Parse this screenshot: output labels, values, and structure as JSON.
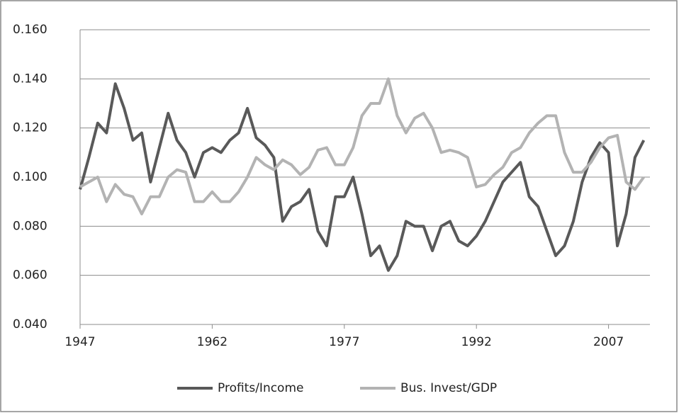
{
  "chart_data": {
    "type": "line",
    "x": [
      1947,
      1948,
      1949,
      1950,
      1951,
      1952,
      1953,
      1954,
      1955,
      1956,
      1957,
      1958,
      1959,
      1960,
      1961,
      1962,
      1963,
      1964,
      1965,
      1966,
      1967,
      1968,
      1969,
      1970,
      1971,
      1972,
      1973,
      1974,
      1975,
      1976,
      1977,
      1978,
      1979,
      1980,
      1981,
      1982,
      1983,
      1984,
      1985,
      1986,
      1987,
      1988,
      1989,
      1990,
      1991,
      1992,
      1993,
      1994,
      1995,
      1996,
      1997,
      1998,
      1999,
      2000,
      2001,
      2002,
      2003,
      2004,
      2005,
      2006,
      2007,
      2008,
      2009,
      2010,
      2011
    ],
    "series": [
      {
        "name": "Profits/Income",
        "color": "#595959",
        "values": [
          0.095,
          0.108,
          0.122,
          0.118,
          0.138,
          0.128,
          0.115,
          0.118,
          0.098,
          0.112,
          0.126,
          0.115,
          0.11,
          0.1,
          0.11,
          0.112,
          0.11,
          0.115,
          0.118,
          0.128,
          0.116,
          0.113,
          0.108,
          0.082,
          0.088,
          0.09,
          0.095,
          0.078,
          0.072,
          0.092,
          0.092,
          0.1,
          0.085,
          0.068,
          0.072,
          0.062,
          0.068,
          0.082,
          0.08,
          0.08,
          0.07,
          0.08,
          0.082,
          0.074,
          0.072,
          0.076,
          0.082,
          0.09,
          0.098,
          0.102,
          0.106,
          0.092,
          0.088,
          0.078,
          0.068,
          0.072,
          0.082,
          0.098,
          0.108,
          0.114,
          0.11,
          0.072,
          0.085,
          0.108,
          0.115
        ]
      },
      {
        "name": "Bus. Invest/GDP",
        "color": "#b3b3b3",
        "values": [
          0.096,
          0.098,
          0.1,
          0.09,
          0.097,
          0.093,
          0.092,
          0.085,
          0.092,
          0.092,
          0.1,
          0.103,
          0.102,
          0.09,
          0.09,
          0.094,
          0.09,
          0.09,
          0.094,
          0.1,
          0.108,
          0.105,
          0.103,
          0.107,
          0.105,
          0.101,
          0.104,
          0.111,
          0.112,
          0.105,
          0.105,
          0.112,
          0.125,
          0.13,
          0.13,
          0.14,
          0.125,
          0.118,
          0.124,
          0.126,
          0.12,
          0.11,
          0.111,
          0.11,
          0.108,
          0.096,
          0.097,
          0.101,
          0.104,
          0.11,
          0.112,
          0.118,
          0.122,
          0.125,
          0.125,
          0.11,
          0.102,
          0.102,
          0.106,
          0.112,
          0.116,
          0.117,
          0.098,
          0.095,
          0.1
        ]
      }
    ],
    "xlim": [
      1947,
      2011.7
    ],
    "xticks": [
      1947,
      1962,
      1977,
      1992,
      2007
    ],
    "ylim": [
      0.04,
      0.16
    ],
    "yticks": [
      {
        "value": 0.04,
        "label": "0.040"
      },
      {
        "value": 0.06,
        "label": "0.060"
      },
      {
        "value": 0.08,
        "label": "0.080"
      },
      {
        "value": 0.1,
        "label": "0.100"
      },
      {
        "value": 0.12,
        "label": "0.120"
      },
      {
        "value": 0.14,
        "label": "0.140"
      },
      {
        "value": 0.16,
        "label": "0.160"
      }
    ],
    "grid": true,
    "legend": "bottom"
  }
}
